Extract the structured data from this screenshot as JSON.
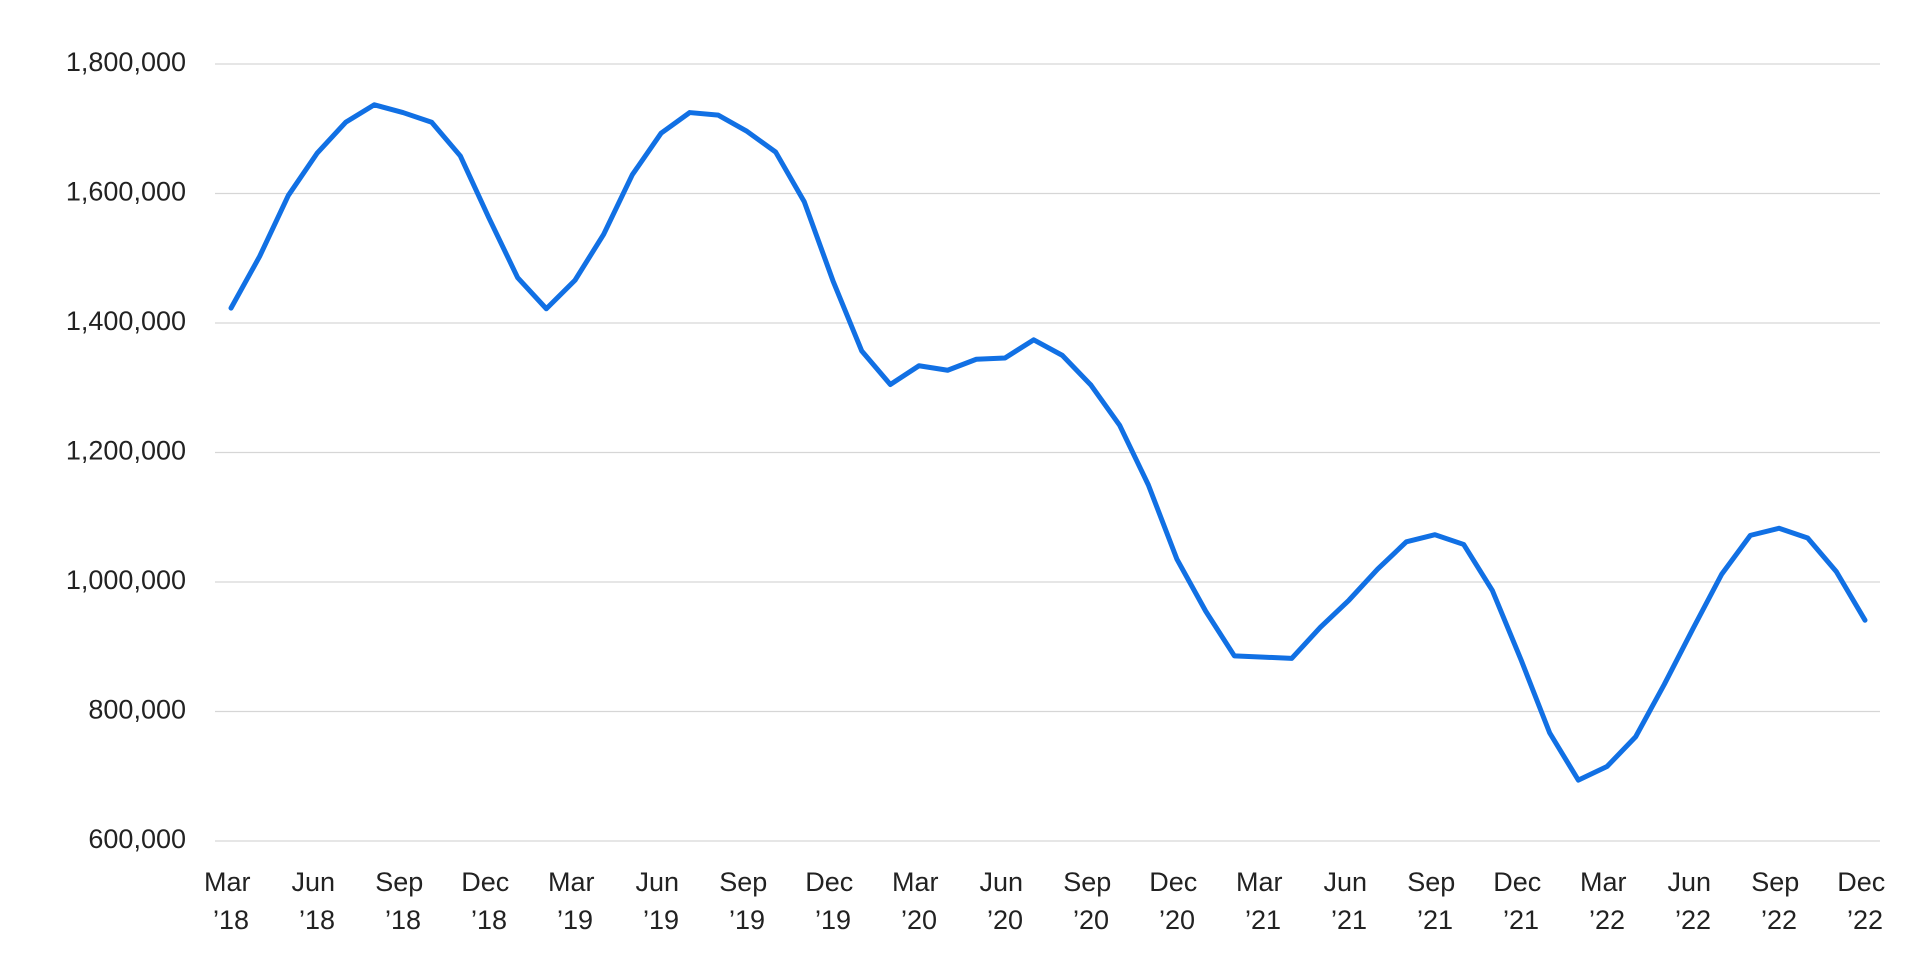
{
  "chart_data": {
    "type": "line",
    "categories": [
      "Mar ’18",
      null,
      null,
      "Jun ’18",
      null,
      null,
      "Sep ’18",
      null,
      null,
      "Dec ’18",
      null,
      null,
      "Mar ’19",
      null,
      null,
      "Jun ’19",
      null,
      null,
      "Sep ’19",
      null,
      null,
      "Dec ’19",
      null,
      null,
      "Mar ’20",
      null,
      null,
      "Jun ’20",
      null,
      null,
      "Sep ’20",
      null,
      null,
      "Dec ’20",
      null,
      null,
      "Mar ’21",
      null,
      null,
      "Jun ’21",
      null,
      null,
      "Sep ’21",
      null,
      null,
      "Dec ’21",
      null,
      null,
      "Mar ’22",
      null,
      null,
      "Jun ’22",
      null,
      null,
      "Sep ’22",
      null,
      null,
      "Dec ’22"
    ],
    "values": [
      1423000,
      1503000,
      1597000,
      1662000,
      1710000,
      1737000,
      1725000,
      1710000,
      1658000,
      1562000,
      1470000,
      1422000,
      1466000,
      1537000,
      1629000,
      1693000,
      1725000,
      1721000,
      1696000,
      1664000,
      1587000,
      1465000,
      1357000,
      1305000,
      1334000,
      1327000,
      1344000,
      1346000,
      1374000,
      1350000,
      1304000,
      1242000,
      1150000,
      1035000,
      955000,
      886000,
      884000,
      882000,
      930000,
      972000,
      1020000,
      1062000,
      1073000,
      1058000,
      987000,
      880000,
      767000,
      694000,
      715000,
      761000,
      842000,
      928000,
      1012000,
      1072000,
      1083000,
      1068000,
      1016000,
      941000
    ],
    "color": "#1170e4",
    "ylim": [
      600000,
      1800000
    ],
    "yticks": [
      {
        "value": 600000,
        "label": "600,000"
      },
      {
        "value": 800000,
        "label": "800,000"
      },
      {
        "value": 1000000,
        "label": "1,000,000"
      },
      {
        "value": 1200000,
        "label": "1,200,000"
      },
      {
        "value": 1400000,
        "label": "1,400,000"
      },
      {
        "value": 1600000,
        "label": "1,600,000"
      },
      {
        "value": 1800000,
        "label": "1,800,000"
      }
    ],
    "grid": true
  }
}
